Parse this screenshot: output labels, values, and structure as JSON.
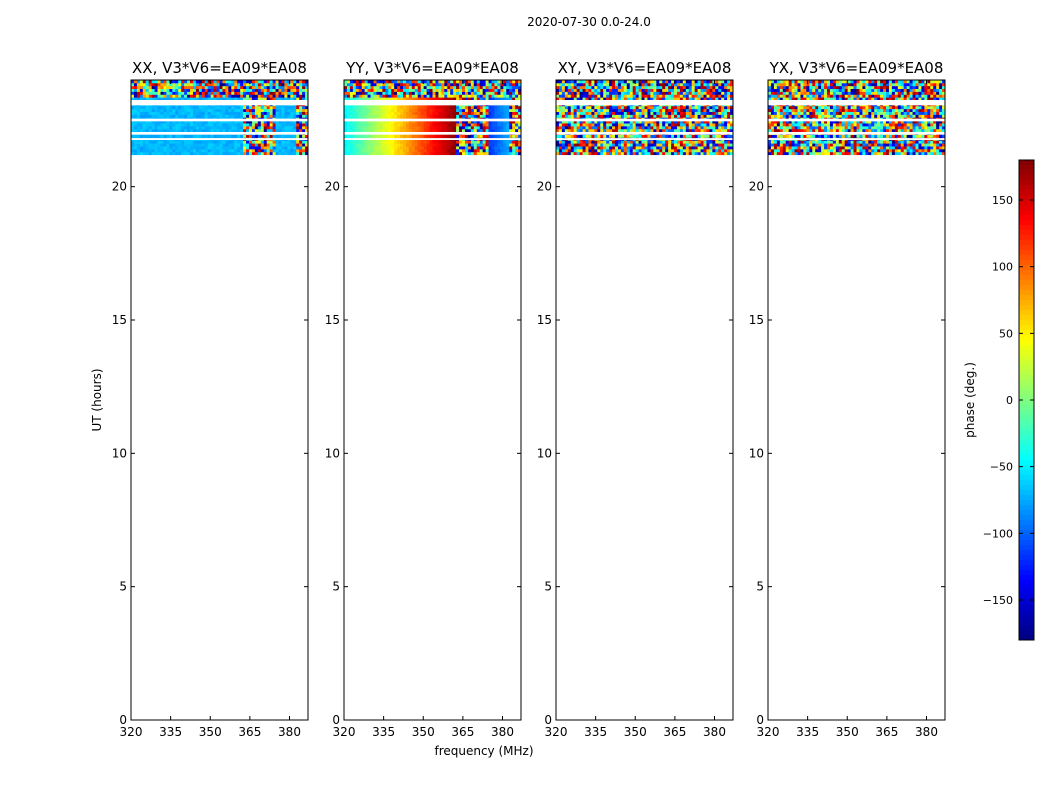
{
  "figure": {
    "suptitle": "2020-07-30 0.0-24.0"
  },
  "chart_data": {
    "type": "heatmap",
    "xlabel": "frequency (MHz)",
    "ylabel": "UT (hours)",
    "xlim": [
      320,
      387
    ],
    "ylim": [
      0,
      24
    ],
    "xticks": [
      320,
      335,
      350,
      365,
      380
    ],
    "yticks": [
      0,
      5,
      10,
      15,
      20
    ],
    "data_time_range_hours": [
      21.2,
      24.0
    ],
    "flagged_time_bands_hours": [
      [
        23.05,
        23.25
      ],
      [
        22.45,
        22.55
      ],
      [
        21.95,
        22.05
      ],
      [
        21.75,
        21.82
      ]
    ],
    "rfi_freq_ranges_mhz": [
      [
        362,
        375
      ],
      [
        382,
        387
      ]
    ],
    "panels": [
      {
        "title": "XX, V3*V6=EA09*EA08",
        "pattern": "flat",
        "base_phase_deg": -70
      },
      {
        "title": "YY, V3*V6=EA09*EA08",
        "pattern": "gradient",
        "phase_start_deg": -50,
        "phase_end_deg": 175
      },
      {
        "title": "XY, V3*V6=EA09*EA08",
        "pattern": "noise",
        "base_phase_deg": 0
      },
      {
        "title": "YX, V3*V6=EA09*EA08",
        "pattern": "noise",
        "base_phase_deg": 60
      }
    ],
    "colorbar": {
      "label": "phase (deg.)",
      "colormap": "jet",
      "range": [
        -180,
        180
      ],
      "ticks": [
        150,
        100,
        50,
        0,
        -50,
        -100,
        -150
      ],
      "tick_labels": [
        "150",
        "100",
        "50",
        "0",
        "−50",
        "−100",
        "−150"
      ]
    }
  }
}
